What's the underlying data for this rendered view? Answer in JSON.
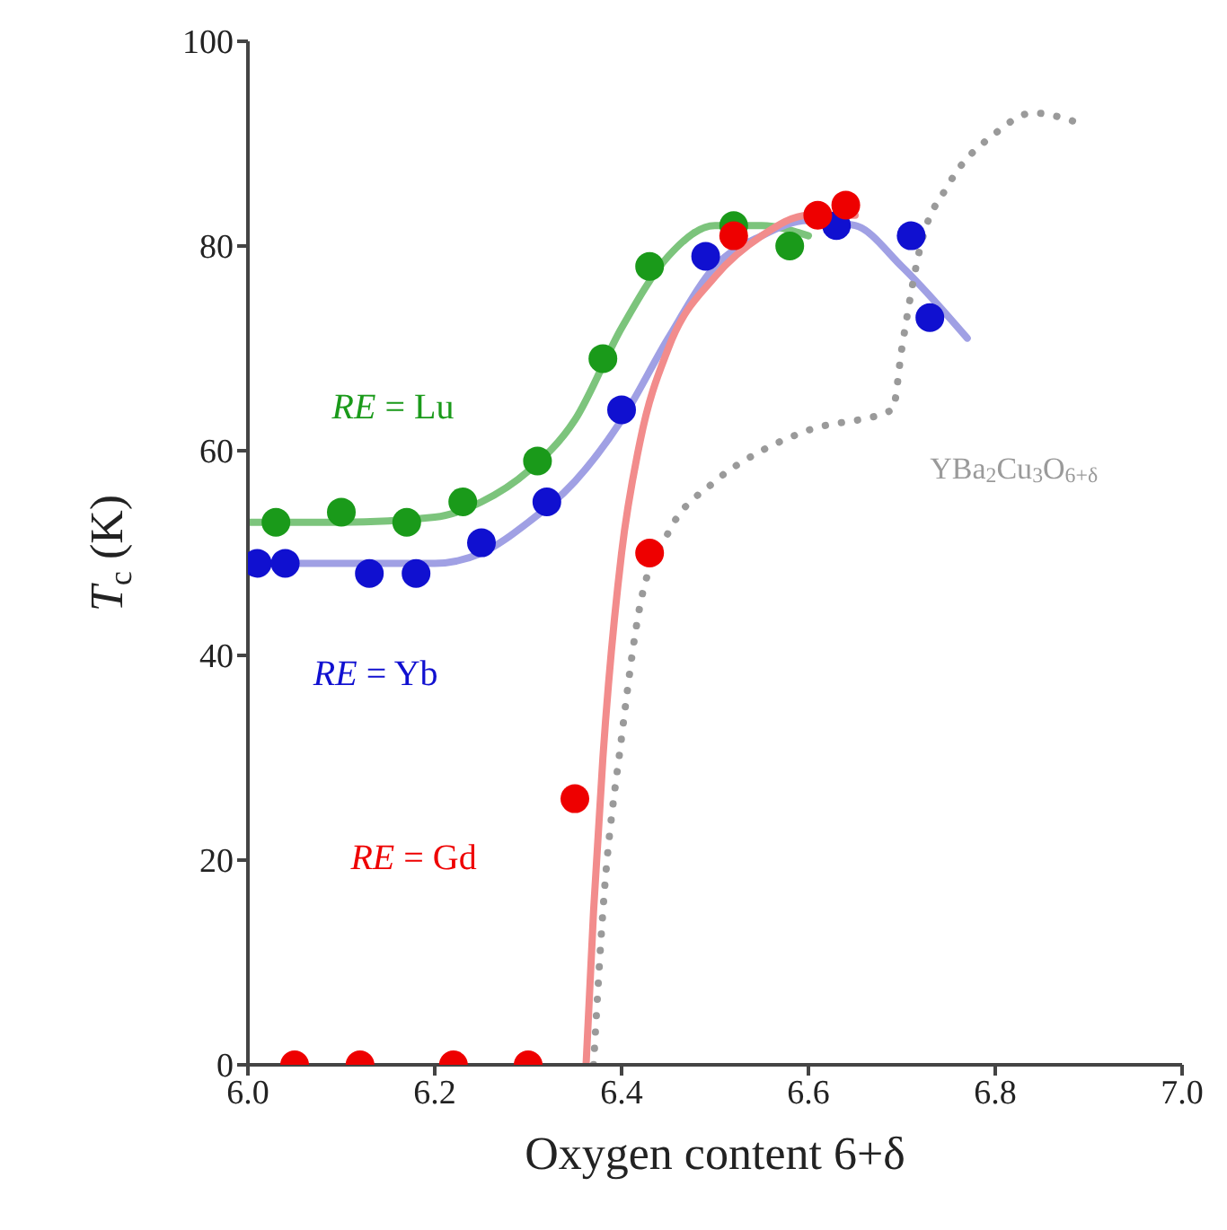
{
  "chart_data": {
    "type": "scatter",
    "xlabel": "Oxygen content 6+δ",
    "ylabel": "T$_{c}$ (K)",
    "xlim": [
      6.0,
      7.0
    ],
    "ylim": [
      0,
      100
    ],
    "xticks": [
      {
        "value": 6.0,
        "label": "6.0"
      },
      6.2,
      6.4,
      6.6,
      6.8,
      {
        "value": 7.0,
        "label": "7.0"
      }
    ],
    "yticks": [
      0,
      20,
      40,
      60,
      80,
      100
    ],
    "series": [
      {
        "type": "line",
        "color": "#7cc47c",
        "line_style": "solid",
        "x": [
          6.0,
          6.1,
          6.2,
          6.25,
          6.3,
          6.35,
          6.4,
          6.45,
          6.5,
          6.55,
          6.6
        ],
        "values": [
          53,
          53,
          53.5,
          55,
          58,
          63,
          72,
          79,
          82,
          82,
          81
        ]
      },
      {
        "type": "line",
        "color": "#a0a0e4",
        "line_style": "solid",
        "x": [
          6.0,
          6.1,
          6.2,
          6.25,
          6.3,
          6.35,
          6.4,
          6.45,
          6.5,
          6.55,
          6.6,
          6.65,
          6.7,
          6.77
        ],
        "values": [
          49,
          49,
          49,
          50,
          53,
          57,
          63,
          71,
          78,
          81,
          82.5,
          82,
          78,
          71
        ]
      },
      {
        "type": "line",
        "color": "#f28c8c",
        "line_style": "solid",
        "x": [
          6.362,
          6.37,
          6.38,
          6.4,
          6.42,
          6.45,
          6.5,
          6.55,
          6.6,
          6.65
        ],
        "values": [
          0,
          15,
          30,
          50,
          61,
          70,
          77,
          81,
          83,
          83
        ]
      },
      {
        "type": "line",
        "name": "YBa$_{2}$Cu$_{3}$O$_{6+δ}$",
        "color": "#9a9a9a",
        "line_style": "dotted",
        "x": [
          6.37,
          6.38,
          6.4,
          6.42,
          6.45,
          6.5,
          6.55,
          6.6,
          6.69,
          6.7,
          6.72,
          6.75,
          6.8,
          6.84,
          6.89
        ],
        "values": [
          0,
          15,
          32,
          45,
          52,
          57,
          60,
          62,
          64,
          70,
          80,
          86,
          91,
          93,
          92
        ]
      },
      {
        "name": "RE = Lu",
        "color": "#1a9a1a",
        "marker": "circle",
        "x": [
          6.03,
          6.1,
          6.17,
          6.23,
          6.31,
          6.38,
          6.43,
          6.52,
          6.58
        ],
        "values": [
          53,
          54,
          53,
          55,
          59,
          69,
          78,
          82,
          80
        ]
      },
      {
        "name": "RE = Yb",
        "color": "#1010d0",
        "marker": "circle",
        "x": [
          6.01,
          6.04,
          6.13,
          6.18,
          6.25,
          6.32,
          6.4,
          6.49,
          6.63,
          6.71,
          6.73
        ],
        "values": [
          49,
          49,
          48,
          48,
          51,
          55,
          64,
          79,
          82,
          81,
          73
        ]
      },
      {
        "name": "RE = Gd",
        "color": "#ee0000",
        "marker": "circle",
        "x": [
          6.05,
          6.12,
          6.22,
          6.3,
          6.35,
          6.43,
          6.52,
          6.61,
          6.64
        ],
        "values": [
          0,
          0,
          0,
          0,
          26,
          50,
          81,
          83,
          84
        ]
      }
    ]
  }
}
